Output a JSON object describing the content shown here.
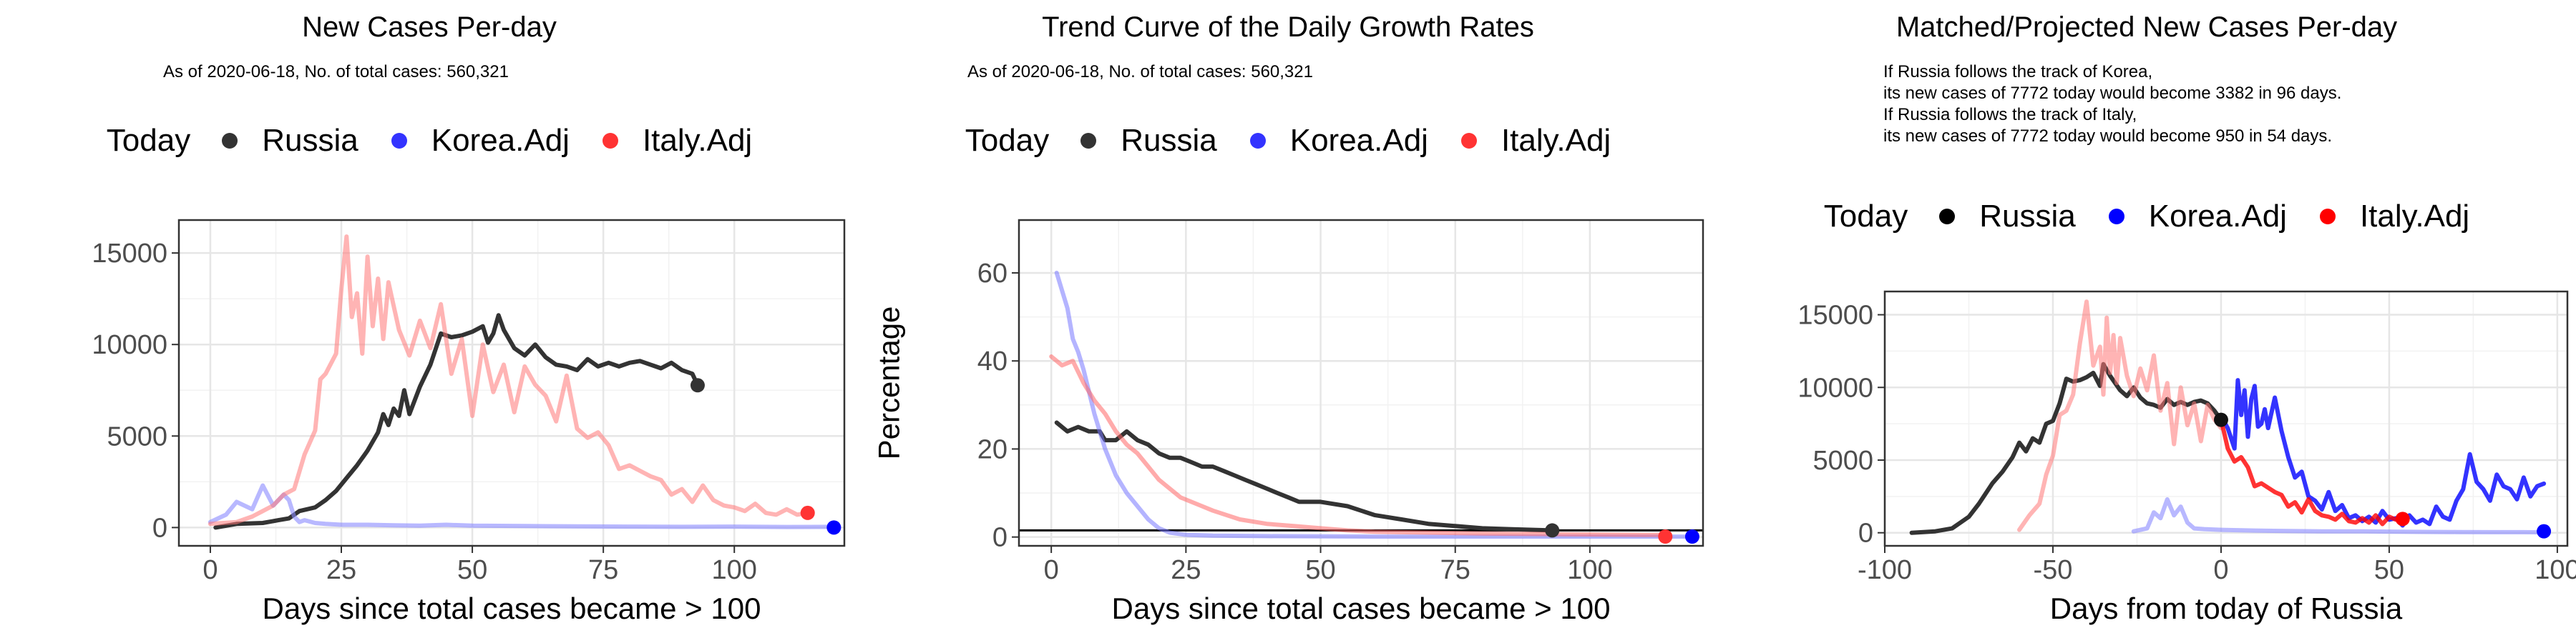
{
  "legend": {
    "title": "Today",
    "entries": [
      {
        "label": "Russia",
        "color": "#000000"
      },
      {
        "label": "Korea.Adj",
        "color": "#0000ff"
      },
      {
        "label": "Italy.Adj",
        "color": "#ff0000"
      }
    ]
  },
  "panels": [
    {
      "title": "New Cases Per-day",
      "subtitle": "As of 2020-06-18, No. of total cases: 560,321"
    },
    {
      "title": "Trend Curve of the Daily Growth Rates",
      "subtitle": "As of 2020-06-18, No. of total cases: 560,321"
    },
    {
      "title": "Matched/Projected New Cases Per-day",
      "subtitle_lines": [
        "If Russia follows the track of Korea,",
        "its new cases of 7772 today would become 3382 in 96 days.",
        "If Russia follows the track of Italy,",
        "its new cases of 7772 today would become 950 in 54 days."
      ]
    }
  ],
  "chart_data": [
    {
      "type": "line",
      "title": "New Cases Per-day",
      "xlabel": "Days since total cases became > 100",
      "ylabel": "",
      "xlim": [
        -6,
        121
      ],
      "ylim": [
        -1000,
        16800
      ],
      "xticks": [
        0,
        25,
        50,
        75,
        100
      ],
      "yticks": [
        0,
        5000,
        10000,
        15000
      ],
      "grid": true,
      "series": [
        {
          "name": "Russia",
          "color": "#333333",
          "opacity": 1,
          "x": [
            1,
            5,
            10,
            13,
            15,
            17,
            20,
            22,
            24,
            26,
            28,
            30,
            32,
            33,
            34,
            35,
            36,
            37,
            38,
            40,
            42,
            44,
            46,
            48,
            50,
            52,
            53,
            54,
            55,
            56,
            58,
            60,
            62,
            64,
            66,
            68,
            70,
            72,
            74,
            76,
            78,
            80,
            82,
            84,
            86,
            88,
            90,
            92,
            93
          ],
          "y": [
            0,
            200,
            250,
            400,
            500,
            900,
            1100,
            1500,
            2000,
            2700,
            3400,
            4200,
            5200,
            6200,
            5600,
            6500,
            6100,
            7500,
            6200,
            7700,
            8900,
            10600,
            10400,
            10500,
            10700,
            11000,
            10100,
            10600,
            11600,
            10800,
            9800,
            9400,
            10000,
            9300,
            8900,
            8800,
            8600,
            9200,
            8800,
            9000,
            8800,
            9000,
            9100,
            8900,
            8700,
            9000,
            8600,
            8400,
            7772
          ]
        },
        {
          "name": "Korea.Adj",
          "color": "#8888ff",
          "opacity": 0.6,
          "x": [
            0,
            3,
            5,
            8,
            10,
            12,
            14,
            15,
            16,
            17,
            18,
            20,
            22,
            25,
            30,
            35,
            40,
            45,
            50,
            60,
            70,
            80,
            90,
            100,
            110,
            119
          ],
          "y": [
            300,
            700,
            1400,
            1000,
            2300,
            1200,
            1800,
            1500,
            600,
            300,
            400,
            250,
            200,
            150,
            150,
            120,
            100,
            150,
            100,
            80,
            60,
            50,
            40,
            50,
            30,
            40
          ]
        },
        {
          "name": "Italy.Adj",
          "color": "#ff7777",
          "opacity": 0.55,
          "x": [
            0,
            5,
            8,
            10,
            12,
            14,
            16,
            18,
            20,
            21,
            22,
            24,
            25,
            26,
            27,
            28,
            29,
            30,
            31,
            32,
            33,
            34,
            35,
            36,
            38,
            40,
            42,
            44,
            46,
            48,
            50,
            52,
            54,
            56,
            58,
            60,
            62,
            64,
            66,
            68,
            70,
            72,
            74,
            76,
            78,
            80,
            82,
            84,
            86,
            88,
            90,
            92,
            94,
            96,
            98,
            100,
            102,
            104,
            106,
            108,
            110,
            112,
            114
          ],
          "y": [
            200,
            300,
            600,
            900,
            1200,
            1800,
            2100,
            4000,
            5300,
            8100,
            8400,
            9500,
            13000,
            15900,
            11500,
            12800,
            9500,
            14800,
            11000,
            13600,
            10300,
            13400,
            12100,
            10800,
            9400,
            11300,
            9800,
            12200,
            8400,
            10300,
            6100,
            10000,
            7400,
            8900,
            6300,
            8800,
            7800,
            7200,
            5800,
            8300,
            5400,
            4900,
            5200,
            4500,
            3200,
            3400,
            3100,
            2800,
            2600,
            1800,
            2100,
            1400,
            2300,
            1500,
            1200,
            1100,
            900,
            1300,
            800,
            700,
            1000,
            700,
            800
          ]
        }
      ],
      "today_points": [
        {
          "name": "Russia",
          "x": 93,
          "y": 7772,
          "color": "#333333"
        },
        {
          "name": "Korea.Adj",
          "x": 119,
          "y": 0,
          "color": "#0000ff"
        },
        {
          "name": "Italy.Adj",
          "x": 114,
          "y": 800,
          "color": "#ff3333"
        }
      ]
    },
    {
      "type": "line",
      "title": "Trend Curve of the Daily Growth Rates",
      "xlabel": "Days since total cases became > 100",
      "ylabel": "Percentage",
      "xlim": [
        -6,
        121
      ],
      "ylim": [
        -2,
        72
      ],
      "xticks": [
        0,
        25,
        50,
        75,
        100
      ],
      "yticks": [
        0,
        20,
        40,
        60
      ],
      "grid": true,
      "hline": 1.5,
      "series": [
        {
          "name": "Russia",
          "color": "#333333",
          "opacity": 1,
          "x": [
            1,
            3,
            5,
            7,
            9,
            10,
            12,
            14,
            16,
            18,
            20,
            22,
            24,
            26,
            28,
            30,
            32,
            34,
            36,
            38,
            40,
            42,
            44,
            46,
            48,
            50,
            55,
            60,
            65,
            70,
            75,
            80,
            85,
            90,
            93
          ],
          "y": [
            26,
            24,
            25,
            24,
            24,
            22,
            22,
            24,
            22,
            21,
            19,
            18,
            18,
            17,
            16,
            16,
            15,
            14,
            13,
            12,
            11,
            10,
            9,
            8,
            8,
            8,
            7,
            5,
            4,
            3,
            2.5,
            2,
            1.8,
            1.6,
            1.5
          ]
        },
        {
          "name": "Korea.Adj",
          "color": "#7777ff",
          "opacity": 0.55,
          "x": [
            1,
            2,
            3,
            4,
            5,
            6,
            7,
            8,
            9,
            10,
            12,
            14,
            16,
            18,
            20,
            22,
            25,
            30,
            40,
            60,
            80,
            100,
            119
          ],
          "y": [
            60,
            56,
            52,
            45,
            42,
            38,
            33,
            28,
            24,
            20,
            14,
            10,
            7,
            4,
            2,
            1,
            0.5,
            0.3,
            0.2,
            0.1,
            0.1,
            0.1,
            0.1
          ]
        },
        {
          "name": "Italy.Adj",
          "color": "#ff6666",
          "opacity": 0.55,
          "x": [
            0,
            2,
            4,
            6,
            8,
            10,
            12,
            14,
            16,
            18,
            20,
            22,
            24,
            26,
            28,
            30,
            35,
            40,
            45,
            50,
            55,
            60,
            70,
            80,
            90,
            100,
            110,
            114
          ],
          "y": [
            41,
            39,
            40,
            35,
            31,
            28,
            24,
            21,
            19,
            16,
            13,
            11,
            9,
            8,
            7,
            6,
            4,
            3,
            2.5,
            2,
            1.5,
            1.2,
            1,
            0.8,
            0.7,
            0.6,
            0.5,
            0.5
          ]
        }
      ],
      "today_points": [
        {
          "name": "Russia",
          "x": 93,
          "y": 1.5,
          "color": "#333333"
        },
        {
          "name": "Korea.Adj",
          "x": 119,
          "y": 0.1,
          "color": "#0000ff"
        },
        {
          "name": "Italy.Adj",
          "x": 114,
          "y": 0.1,
          "color": "#ff3333"
        }
      ]
    },
    {
      "type": "line",
      "title": "Matched/Projected New Cases Per-day",
      "xlabel": "Days from today of Russia",
      "ylabel": "",
      "xlim": [
        -100,
        103
      ],
      "ylim": [
        -900,
        16600
      ],
      "xticks": [
        -100,
        -50,
        0,
        50,
        100
      ],
      "yticks": [
        0,
        5000,
        10000,
        15000
      ],
      "grid": true,
      "series": [
        {
          "name": "Russia",
          "color": "#333333",
          "opacity": 1,
          "x": [
            -92,
            -85,
            -80,
            -75,
            -72,
            -70,
            -68,
            -65,
            -62,
            -60,
            -58,
            -56,
            -54,
            -52,
            -50,
            -48,
            -46,
            -44,
            -42,
            -40,
            -38,
            -36,
            -35,
            -33,
            -30,
            -28,
            -26,
            -24,
            -22,
            -20,
            -18,
            -16,
            -14,
            -12,
            -10,
            -8,
            -6,
            -4,
            -2,
            0
          ],
          "y": [
            0,
            100,
            300,
            1100,
            2000,
            2700,
            3400,
            4200,
            5200,
            6200,
            5600,
            6500,
            6200,
            7500,
            7700,
            8900,
            10600,
            10400,
            10500,
            10700,
            11000,
            10100,
            11600,
            10800,
            9800,
            9400,
            10000,
            9300,
            8900,
            8800,
            8600,
            9200,
            8800,
            9000,
            8800,
            9000,
            9100,
            8900,
            8400,
            7772
          ]
        },
        {
          "name": "Korea.Adj",
          "color": "#8888ff",
          "opacity": 0.6,
          "x": [
            -26,
            -22,
            -20,
            -18,
            -16,
            -14,
            -12,
            -10,
            -8,
            -5,
            0,
            10,
            20,
            30,
            40,
            50,
            60,
            70,
            80,
            90,
            96
          ],
          "y": [
            100,
            300,
            1400,
            1000,
            2300,
            1200,
            1800,
            700,
            300,
            250,
            200,
            150,
            120,
            100,
            100,
            80,
            60,
            50,
            40,
            40,
            30
          ]
        },
        {
          "name": "Italy.Adj",
          "color": "#ff7777",
          "opacity": 0.55,
          "x": [
            -60,
            -57,
            -54,
            -52,
            -50,
            -48,
            -46,
            -44,
            -42,
            -40,
            -38,
            -36,
            -35,
            -34,
            -33,
            -32,
            -31,
            -30,
            -29,
            -28,
            -26,
            -24,
            -22,
            -20,
            -18,
            -16,
            -14,
            -12,
            -10,
            -8,
            -6,
            -4,
            -2,
            0
          ],
          "y": [
            200,
            1200,
            2000,
            4000,
            5300,
            8100,
            8400,
            9500,
            13000,
            15900,
            11500,
            12800,
            9500,
            14800,
            11000,
            13600,
            10300,
            13400,
            12100,
            10800,
            9400,
            11300,
            9800,
            12200,
            8400,
            10300,
            6100,
            10000,
            7400,
            8900,
            6300,
            8800,
            7800,
            7200
          ]
        },
        {
          "name": "Korea.Adj projected",
          "color": "#0000ff",
          "opacity": 0.8,
          "x": [
            0,
            2,
            4,
            5,
            6,
            7,
            8,
            9,
            10,
            11,
            12,
            13,
            14,
            16,
            18,
            20,
            22,
            24,
            26,
            28,
            30,
            32,
            34,
            36,
            38,
            40,
            42,
            44,
            46,
            48,
            50,
            52,
            54,
            56,
            58,
            60,
            62,
            64,
            66,
            68,
            70,
            72,
            74,
            76,
            78,
            80,
            82,
            84,
            86,
            88,
            90,
            92,
            94,
            96
          ],
          "y": [
            8000,
            7200,
            5800,
            10500,
            8100,
            9800,
            6600,
            9200,
            10100,
            7300,
            7500,
            8500,
            7200,
            9300,
            7000,
            5200,
            3800,
            4200,
            2500,
            2200,
            1600,
            2800,
            1500,
            1900,
            1000,
            1200,
            800,
            1100,
            700,
            1500,
            900,
            1000,
            500,
            1200,
            700,
            900,
            600,
            1800,
            1100,
            900,
            2200,
            3000,
            5400,
            3500,
            3000,
            2200,
            4000,
            3200,
            3000,
            2300,
            3800,
            2500,
            3200,
            3382
          ]
        },
        {
          "name": "Italy.Adj projected",
          "color": "#ff0000",
          "opacity": 0.8,
          "x": [
            0,
            2,
            4,
            6,
            8,
            10,
            12,
            14,
            16,
            18,
            20,
            22,
            24,
            26,
            28,
            30,
            32,
            34,
            36,
            38,
            40,
            42,
            44,
            46,
            48,
            50,
            52,
            54
          ],
          "y": [
            7800,
            5800,
            4900,
            5200,
            4500,
            3200,
            3400,
            3100,
            2800,
            2600,
            1800,
            2100,
            1400,
            2300,
            1500,
            1200,
            1100,
            900,
            1300,
            800,
            700,
            1000,
            700,
            1200,
            600,
            1100,
            900,
            950
          ]
        }
      ],
      "today_points": [
        {
          "name": "Russia",
          "x": 0,
          "y": 7772,
          "color": "#111111"
        },
        {
          "name": "Korea.Adj",
          "x": 96,
          "y": 100,
          "color": "#0000ff"
        },
        {
          "name": "Italy.Adj",
          "x": 54,
          "y": 950,
          "color": "#ff0000"
        }
      ]
    }
  ]
}
